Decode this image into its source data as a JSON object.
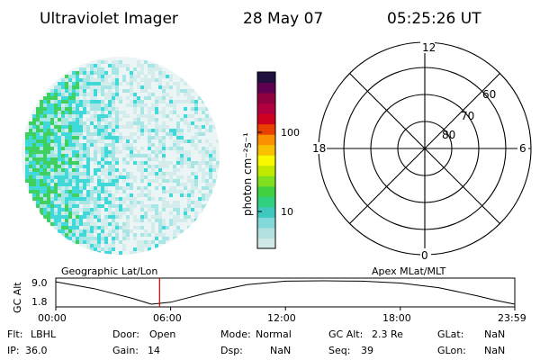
{
  "header": {
    "title": "Ultraviolet Imager",
    "date": "28 May 07",
    "time": "05:25:26 UT"
  },
  "colorbar": {
    "label": "photon cm⁻²s⁻¹",
    "tick_labels": [
      "100",
      "10"
    ],
    "colors": [
      "#d0e8e8",
      "#b0e0e0",
      "#80d8d8",
      "#40c8c0",
      "#30d080",
      "#40d040",
      "#80e020",
      "#c0e800",
      "#f8f800",
      "#f8c000",
      "#f89000",
      "#e84000",
      "#d00020",
      "#b00040",
      "#900040",
      "#600050",
      "#201040"
    ]
  },
  "image_panel": {
    "colors": {
      "background": "#ffffff",
      "faint": "#d4ecec",
      "light": "#a8e6e6",
      "cyan": "#40d8d8",
      "green": "#40d060"
    }
  },
  "polar_plot": {
    "mlt_labels": [
      "12",
      "18",
      "6",
      "0"
    ],
    "mlat_labels": [
      "60",
      "70",
      "80"
    ]
  },
  "timeline": {
    "left_label": "Geographic Lat/Lon",
    "right_label": "Apex MLat/MLT",
    "y_axis_label": "GC Alt",
    "y_ticks": [
      "9.0",
      "1.8"
    ],
    "x_ticks": [
      "00:00",
      "06:00",
      "12:00",
      "18:00",
      "23:59"
    ],
    "current_time_hours": 5.42,
    "marker_color": "#cc0000"
  },
  "chart_data": {
    "type": "line",
    "xlabel": "",
    "ylabel": "GC Alt",
    "x_range": [
      "00:00",
      "23:59"
    ],
    "ylim": [
      1.8,
      9.0
    ],
    "series": [
      {
        "x": [
          "00:00",
          "02:00",
          "04:00",
          "05:00",
          "06:00",
          "08:00",
          "10:00",
          "12:00",
          "14:00",
          "16:00",
          "18:00",
          "20:00",
          "22:00",
          "23:00",
          "23:59"
        ],
        "values": [
          8.7,
          6.6,
          3.6,
          1.8,
          2.4,
          5.4,
          7.8,
          8.9,
          9.0,
          8.9,
          8.3,
          6.9,
          4.4,
          3.0,
          1.8
        ]
      }
    ]
  },
  "status": {
    "flt_label": "Flt:",
    "flt_value": "LBHL",
    "door_label": "Door:",
    "door_value": "Open",
    "mode_label": "Mode:",
    "mode_value": "Normal",
    "gcalt_label": "GC Alt:",
    "gcalt_value": "2.3 Re",
    "glat_label": "GLat:",
    "glat_value": "NaN",
    "ip_label": "IP:",
    "ip_value": "36.0",
    "gain_label": "Gain:",
    "gain_value": "14",
    "dsp_label": "Dsp:",
    "dsp_value": "NaN",
    "seq_label": "Seq:",
    "seq_value": "39",
    "glon_label": "GLon:",
    "glon_value": "NaN"
  }
}
